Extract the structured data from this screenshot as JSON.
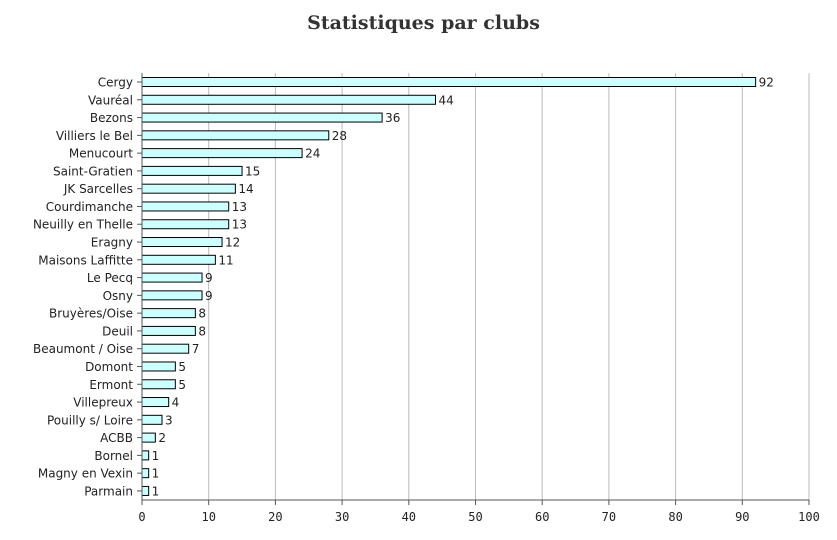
{
  "chart_data": {
    "type": "bar",
    "orientation": "horizontal",
    "title": "Statistiques par clubs",
    "xlabel": "",
    "ylabel": "",
    "xlim": [
      0,
      100
    ],
    "xticks": [
      0,
      10,
      20,
      30,
      40,
      50,
      60,
      70,
      80,
      90,
      100
    ],
    "grid": "vertical",
    "bar_color": "#ccffff",
    "bar_edge_color": "#000000",
    "grid_color": "#bbbbbb",
    "categories": [
      "Cergy",
      "Vauréal",
      "Bezons",
      "Villiers le Bel",
      "Menucourt",
      "Saint-Gratien",
      "JK Sarcelles",
      "Courdimanche",
      "Neuilly en Thelle",
      "Eragny",
      "Maisons Laffitte",
      "Le Pecq",
      "Osny",
      "Bruyères/Oise",
      "Deuil",
      "Beaumont / Oise",
      "Domont",
      "Ermont",
      "Villepreux",
      "Pouilly s/ Loire",
      "ACBB",
      "Bornel",
      "Magny en Vexin",
      "Parmain"
    ],
    "values": [
      92,
      44,
      36,
      28,
      24,
      15,
      14,
      13,
      13,
      12,
      11,
      9,
      9,
      8,
      8,
      7,
      5,
      5,
      4,
      3,
      2,
      1,
      1,
      1
    ]
  }
}
